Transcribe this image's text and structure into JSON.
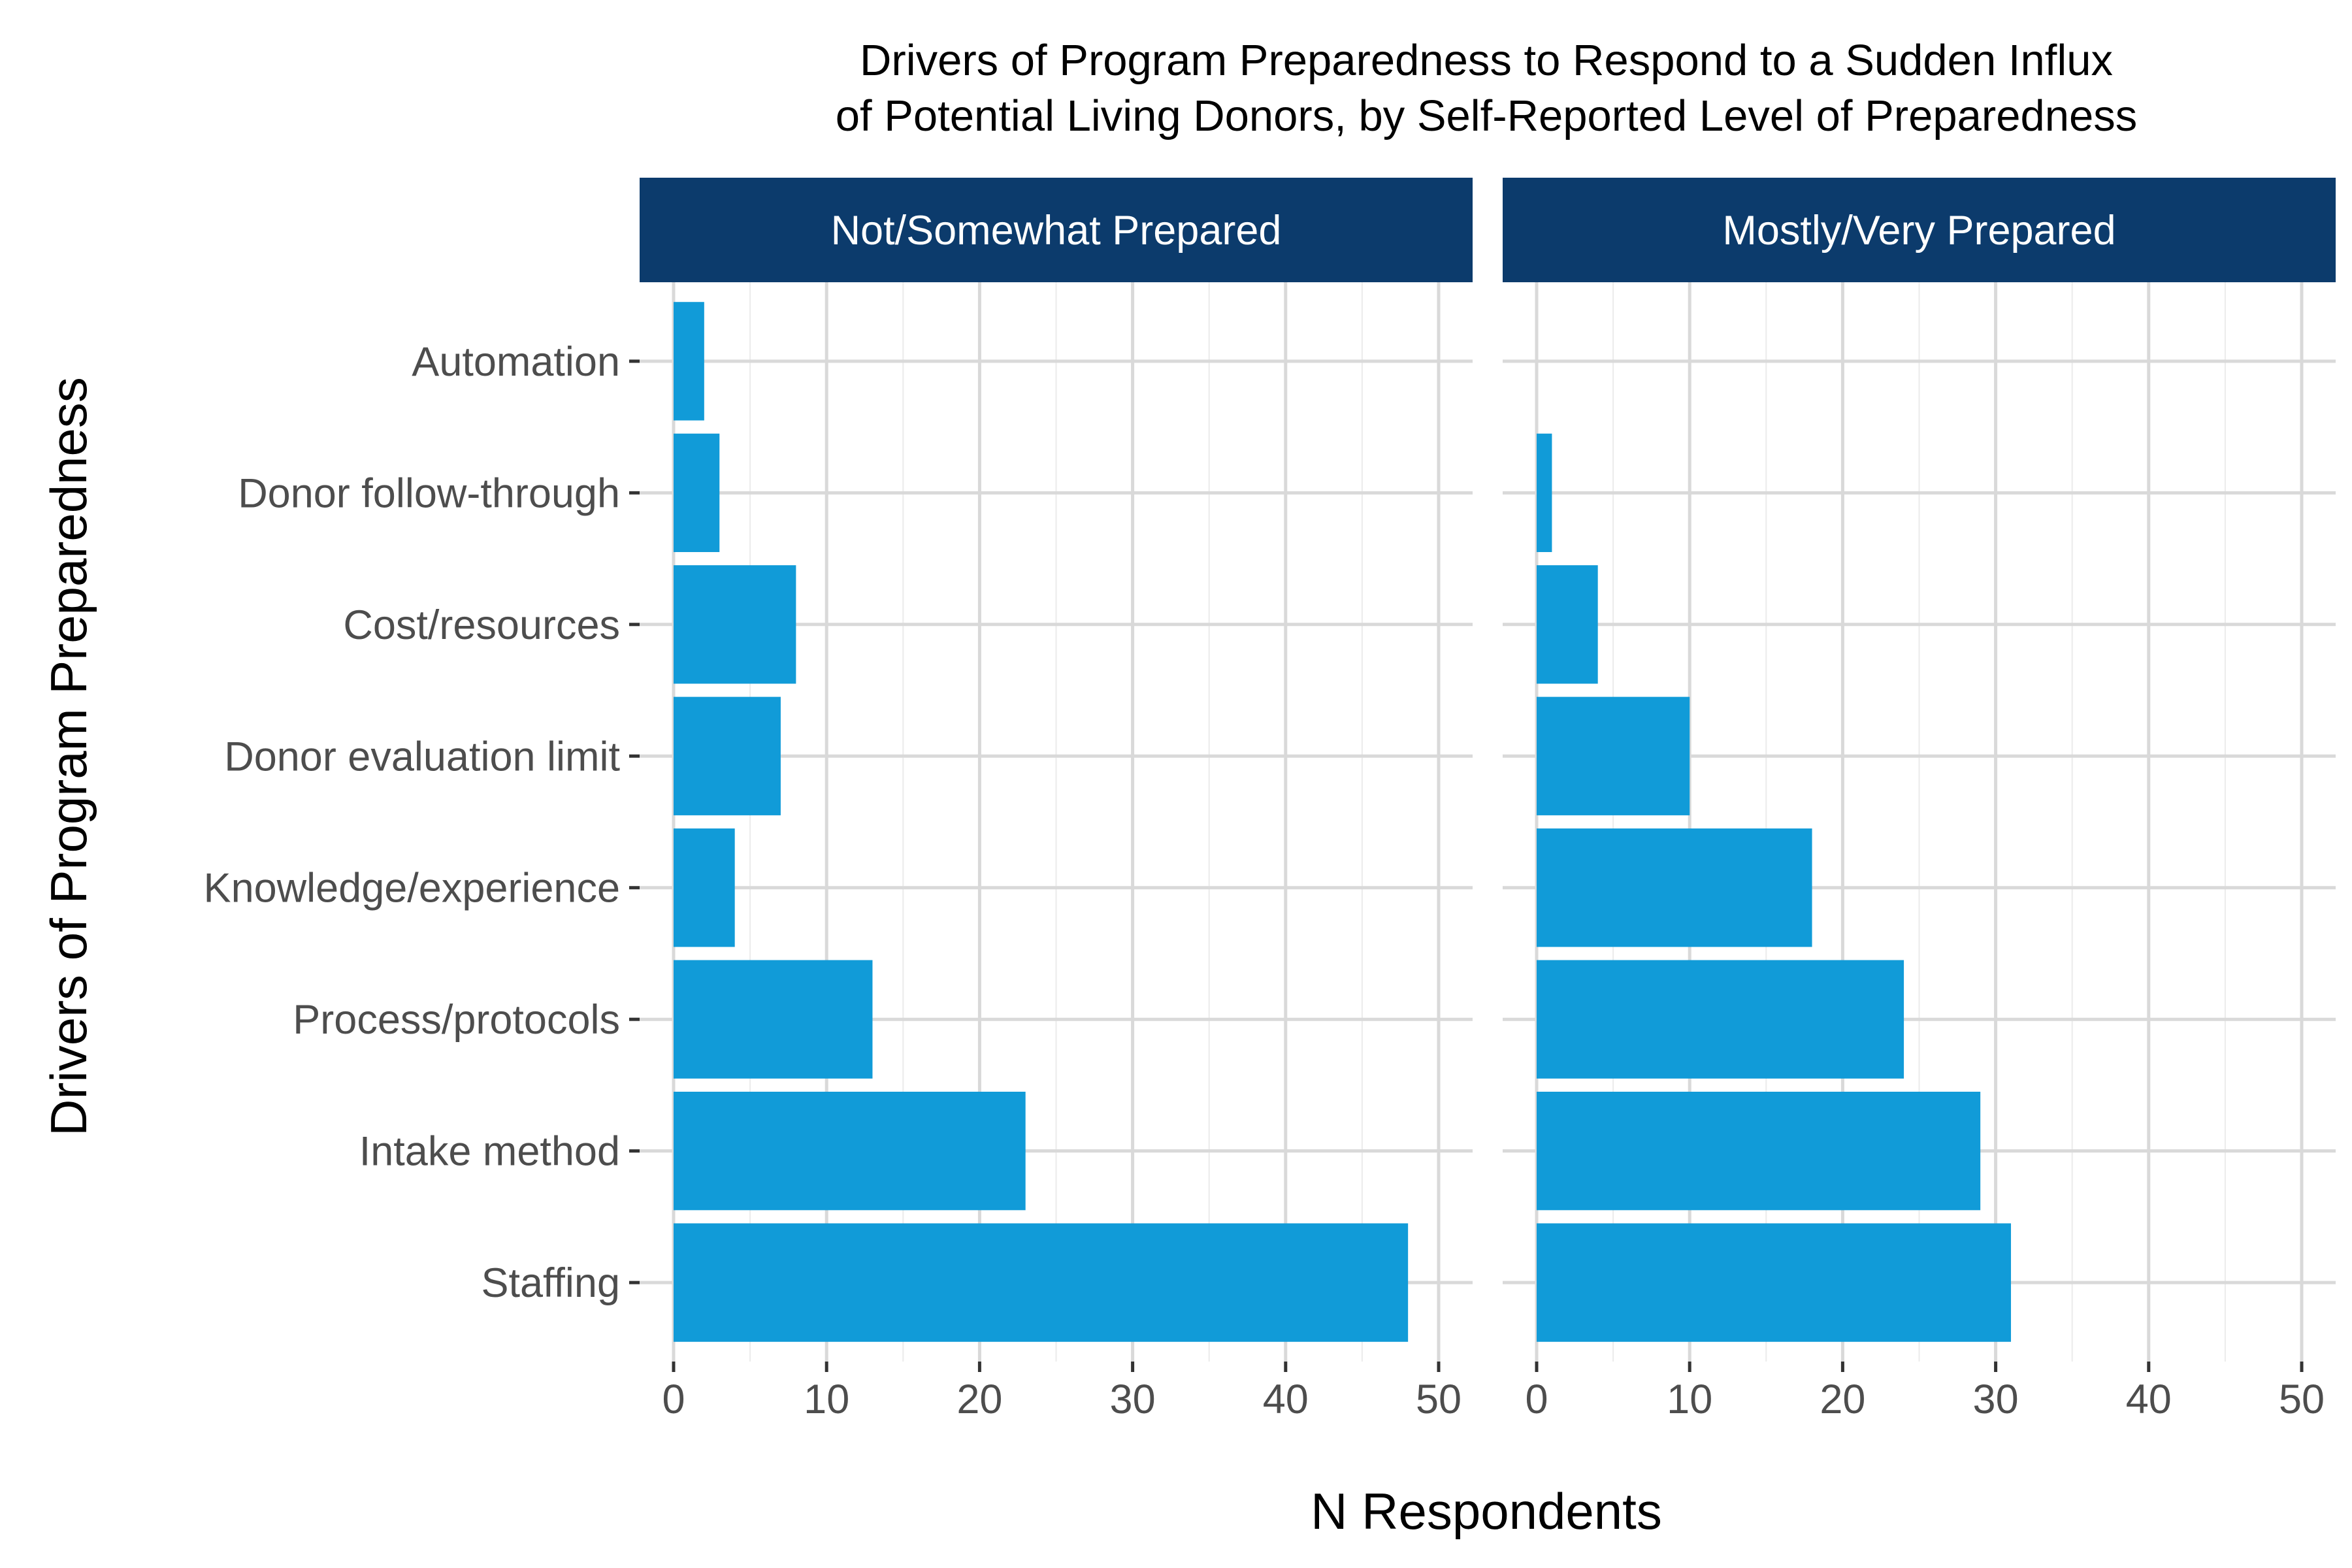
{
  "chart_data": {
    "type": "bar",
    "orientation": "horizontal",
    "title_lines": [
      "Drivers of Program Preparedness to Respond to a Sudden Influx",
      "of Potential Living Donors, by Self-Reported Level of Preparedness"
    ],
    "xlabel": "N Respondents",
    "ylabel": "Drivers of Program Preparedness",
    "xlim": [
      0,
      50
    ],
    "x_ticks": [
      0,
      10,
      20,
      30,
      40,
      50
    ],
    "categories": [
      "Automation",
      "Donor follow-through",
      "Cost/resources",
      "Donor evaluation limit",
      "Knowledge/experience",
      "Process/protocols",
      "Intake method",
      "Staffing"
    ],
    "bar_color": "#119bd8",
    "strip_color": "#0c3b6c",
    "grid": true,
    "facets": [
      {
        "label": "Not/Somewhat Prepared",
        "values": [
          2,
          3,
          8,
          7,
          4,
          13,
          23,
          48
        ]
      },
      {
        "label": "Mostly/Very Prepared",
        "values": [
          0,
          1,
          4,
          10,
          18,
          24,
          29,
          31
        ]
      }
    ]
  }
}
